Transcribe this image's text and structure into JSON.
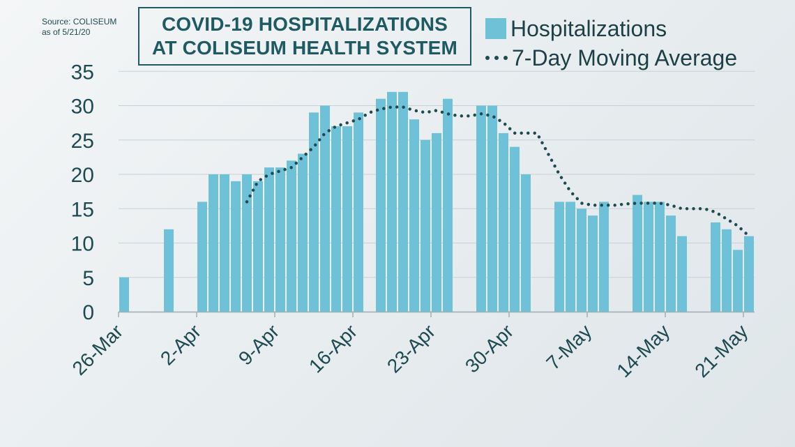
{
  "source": {
    "line1": "Source: COLISEUM",
    "line2": "as of 5/21/20"
  },
  "title": {
    "line1": "COVID-19 HOSPITALIZATIONS",
    "line2": "AT COLISEUM HEALTH SYSTEM"
  },
  "legend": {
    "hospitalizations": "Hospitalizations",
    "moving_average": "7-Day Moving Average"
  },
  "colors": {
    "bar": "#6ec1d7",
    "line": "#1f4a52",
    "text": "#1f4a52",
    "grid": "#c7d1d5"
  },
  "chart_data": {
    "type": "bar",
    "title": "COVID-19 HOSPITALIZATIONS AT COLISEUM HEALTH SYSTEM",
    "xlabel": "",
    "ylabel": "",
    "ylim": [
      0,
      35
    ],
    "yticks": [
      0,
      5,
      10,
      15,
      20,
      25,
      30,
      35
    ],
    "grid": true,
    "legend_position": "top-right",
    "x_start": "26-Mar",
    "x_tick_labels": [
      "26-Mar",
      "2-Apr",
      "9-Apr",
      "16-Apr",
      "23-Apr",
      "30-Apr",
      "7-May",
      "14-May",
      "21-May"
    ],
    "series": [
      {
        "name": "Hospitalizations",
        "kind": "bar",
        "values": [
          5,
          null,
          null,
          null,
          12,
          null,
          null,
          16,
          20,
          20,
          19,
          20,
          19,
          21,
          21,
          22,
          23,
          29,
          30,
          27,
          27,
          29,
          null,
          31,
          32,
          32,
          28,
          25,
          26,
          31,
          null,
          null,
          30,
          30,
          26,
          24,
          20,
          null,
          null,
          16,
          16,
          15,
          14,
          16,
          null,
          null,
          17,
          16,
          16,
          14,
          11,
          null,
          null,
          13,
          12,
          9,
          11
        ]
      },
      {
        "name": "7-Day Moving Average",
        "kind": "line",
        "values": [
          null,
          null,
          null,
          null,
          null,
          null,
          null,
          null,
          null,
          null,
          null,
          16,
          19,
          20,
          20.5,
          21,
          22.5,
          24,
          26,
          27,
          27.5,
          28,
          29,
          29.5,
          29.8,
          29.8,
          29.3,
          29,
          29.3,
          28.8,
          28.5,
          28.5,
          28.8,
          28.5,
          27.5,
          26,
          26,
          26,
          23,
          20,
          17.5,
          15.8,
          15.5,
          15.5,
          15.5,
          15.7,
          15.8,
          15.8,
          15.8,
          15.5,
          15,
          15,
          15,
          14.5,
          13.5,
          12.5,
          11
        ]
      }
    ]
  }
}
